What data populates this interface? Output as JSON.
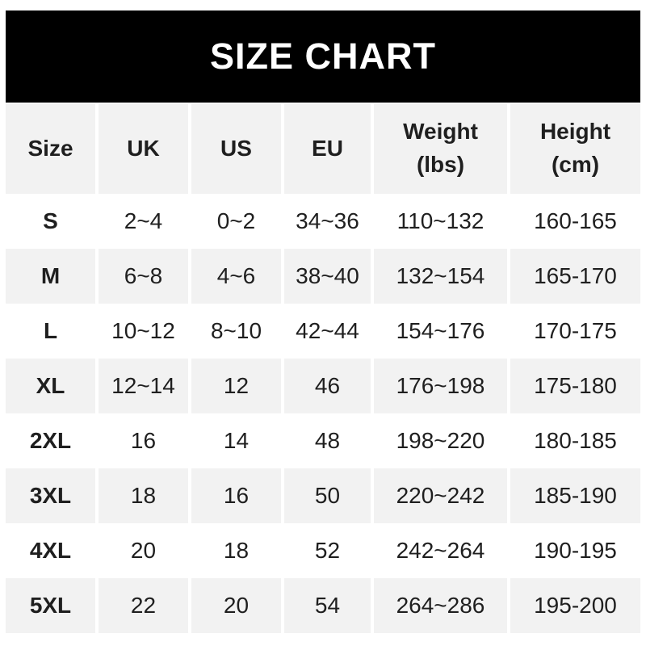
{
  "colors": {
    "banner_bg": "#000000",
    "banner_text": "#ffffff",
    "alt_row_bg": "#f2f2f2",
    "text": "#1f1f1f"
  },
  "chart_data": {
    "type": "table",
    "title": "SIZE CHART",
    "columns": [
      {
        "label": "Size",
        "sub": ""
      },
      {
        "label": "UK",
        "sub": ""
      },
      {
        "label": "US",
        "sub": ""
      },
      {
        "label": "EU",
        "sub": ""
      },
      {
        "label": "Weight",
        "sub": "(lbs)"
      },
      {
        "label": "Height",
        "sub": "(cm)"
      }
    ],
    "rows": [
      {
        "cells": [
          "S",
          "2~4",
          "0~2",
          "34~36",
          "110~132",
          "160-165"
        ]
      },
      {
        "cells": [
          "M",
          "6~8",
          "4~6",
          "38~40",
          "132~154",
          "165-170"
        ]
      },
      {
        "cells": [
          "L",
          "10~12",
          "8~10",
          "42~44",
          "154~176",
          "170-175"
        ]
      },
      {
        "cells": [
          "XL",
          "12~14",
          "12",
          "46",
          "176~198",
          "175-180"
        ]
      },
      {
        "cells": [
          "2XL",
          "16",
          "14",
          "48",
          "198~220",
          "180-185"
        ]
      },
      {
        "cells": [
          "3XL",
          "18",
          "16",
          "50",
          "220~242",
          "185-190"
        ]
      },
      {
        "cells": [
          "4XL",
          "20",
          "18",
          "52",
          "242~264",
          "190-195"
        ]
      },
      {
        "cells": [
          "5XL",
          "22",
          "20",
          "54",
          "264~286",
          "195-200"
        ]
      }
    ]
  }
}
